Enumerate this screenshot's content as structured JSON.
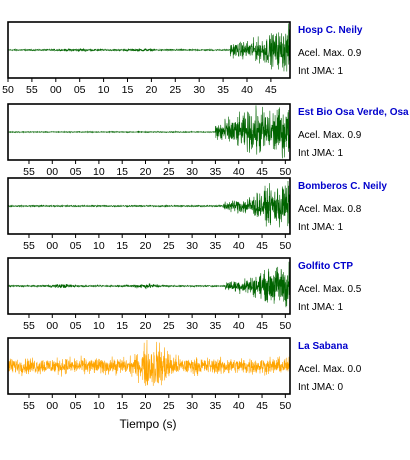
{
  "chart_data": {
    "type": "line",
    "xlabel": "Tiempo (s)",
    "panels": [
      {
        "station": "Hosp C. Neily",
        "accel_label": "Acel. Max. 0.9",
        "jma_label": "Int JMA: 1",
        "color": "#006400",
        "xlim": [
          50,
          109
        ],
        "ticks": [
          50,
          55,
          60,
          65,
          70,
          75,
          80,
          85,
          90,
          95,
          100,
          105
        ],
        "tick_labels": [
          "50",
          "55",
          "00",
          "05",
          "10",
          "15",
          "20",
          "25",
          "30",
          "35",
          "40",
          "45"
        ],
        "noise_amplitude": 0.03,
        "events": [
          {
            "t": 65,
            "a": 0.04
          },
          {
            "t": 78,
            "a": 0.03
          }
        ],
        "arrival": 96.5,
        "ramp_end": 109,
        "amp_start": 0.3,
        "amp_end": 1.0
      },
      {
        "station": "Est Bio Osa Verde, Osa",
        "accel_label": "Acel. Max. 0.9",
        "jma_label": "Int JMA: 1",
        "color": "#006400",
        "xlim": [
          50.5,
          111
        ],
        "ticks": [
          55,
          60,
          65,
          70,
          75,
          80,
          85,
          90,
          95,
          100,
          105,
          110
        ],
        "tick_labels": [
          "55",
          "00",
          "05",
          "10",
          "15",
          "20",
          "25",
          "30",
          "35",
          "40",
          "45",
          "50"
        ],
        "noise_amplitude": 0.02,
        "events": [],
        "arrival": 95,
        "ramp_end": 104,
        "amp_start": 0.5,
        "amp_end": 1.0
      },
      {
        "station": "Bomberos C. Neily",
        "accel_label": "Acel. Max. 0.8",
        "jma_label": "Int JMA: 1",
        "color": "#006400",
        "xlim": [
          50.5,
          111
        ],
        "ticks": [
          55,
          60,
          65,
          70,
          75,
          80,
          85,
          90,
          95,
          100,
          105,
          110
        ],
        "tick_labels": [
          "55",
          "00",
          "05",
          "10",
          "15",
          "20",
          "25",
          "30",
          "35",
          "40",
          "45",
          "50"
        ],
        "noise_amplitude": 0.03,
        "events": [],
        "arrival": 96.5,
        "ramp_end": 109,
        "amp_start": 0.2,
        "amp_end": 1.0
      },
      {
        "station": "Golfito CTP",
        "accel_label": "Acel. Max. 0.5",
        "jma_label": "Int JMA: 1",
        "color": "#006400",
        "xlim": [
          50.5,
          111
        ],
        "ticks": [
          55,
          60,
          65,
          70,
          75,
          80,
          85,
          90,
          95,
          100,
          105,
          110
        ],
        "tick_labels": [
          "55",
          "00",
          "05",
          "10",
          "15",
          "20",
          "25",
          "30",
          "35",
          "40",
          "45",
          "50"
        ],
        "noise_amplitude": 0.03,
        "events": [
          {
            "t": 62,
            "a": 0.06
          },
          {
            "t": 80,
            "a": 0.08
          }
        ],
        "arrival": 97,
        "ramp_end": 110,
        "amp_start": 0.2,
        "amp_end": 1.0
      },
      {
        "station": "La Sabana",
        "accel_label": "Acel. Max. 0.0",
        "jma_label": "Int JMA: 0",
        "color": "#ffa500",
        "xlim": [
          50.5,
          111
        ],
        "ticks": [
          55,
          60,
          65,
          70,
          75,
          80,
          85,
          90,
          95,
          100,
          105,
          110
        ],
        "tick_labels": [
          "55",
          "00",
          "05",
          "10",
          "15",
          "20",
          "25",
          "30",
          "35",
          "40",
          "45",
          "50"
        ],
        "noise_amplitude": 0.35,
        "events": [
          {
            "t": 82,
            "a": 0.9
          }
        ],
        "arrival": null,
        "ramp_end": null,
        "amp_start": 0,
        "amp_end": 0
      }
    ]
  }
}
